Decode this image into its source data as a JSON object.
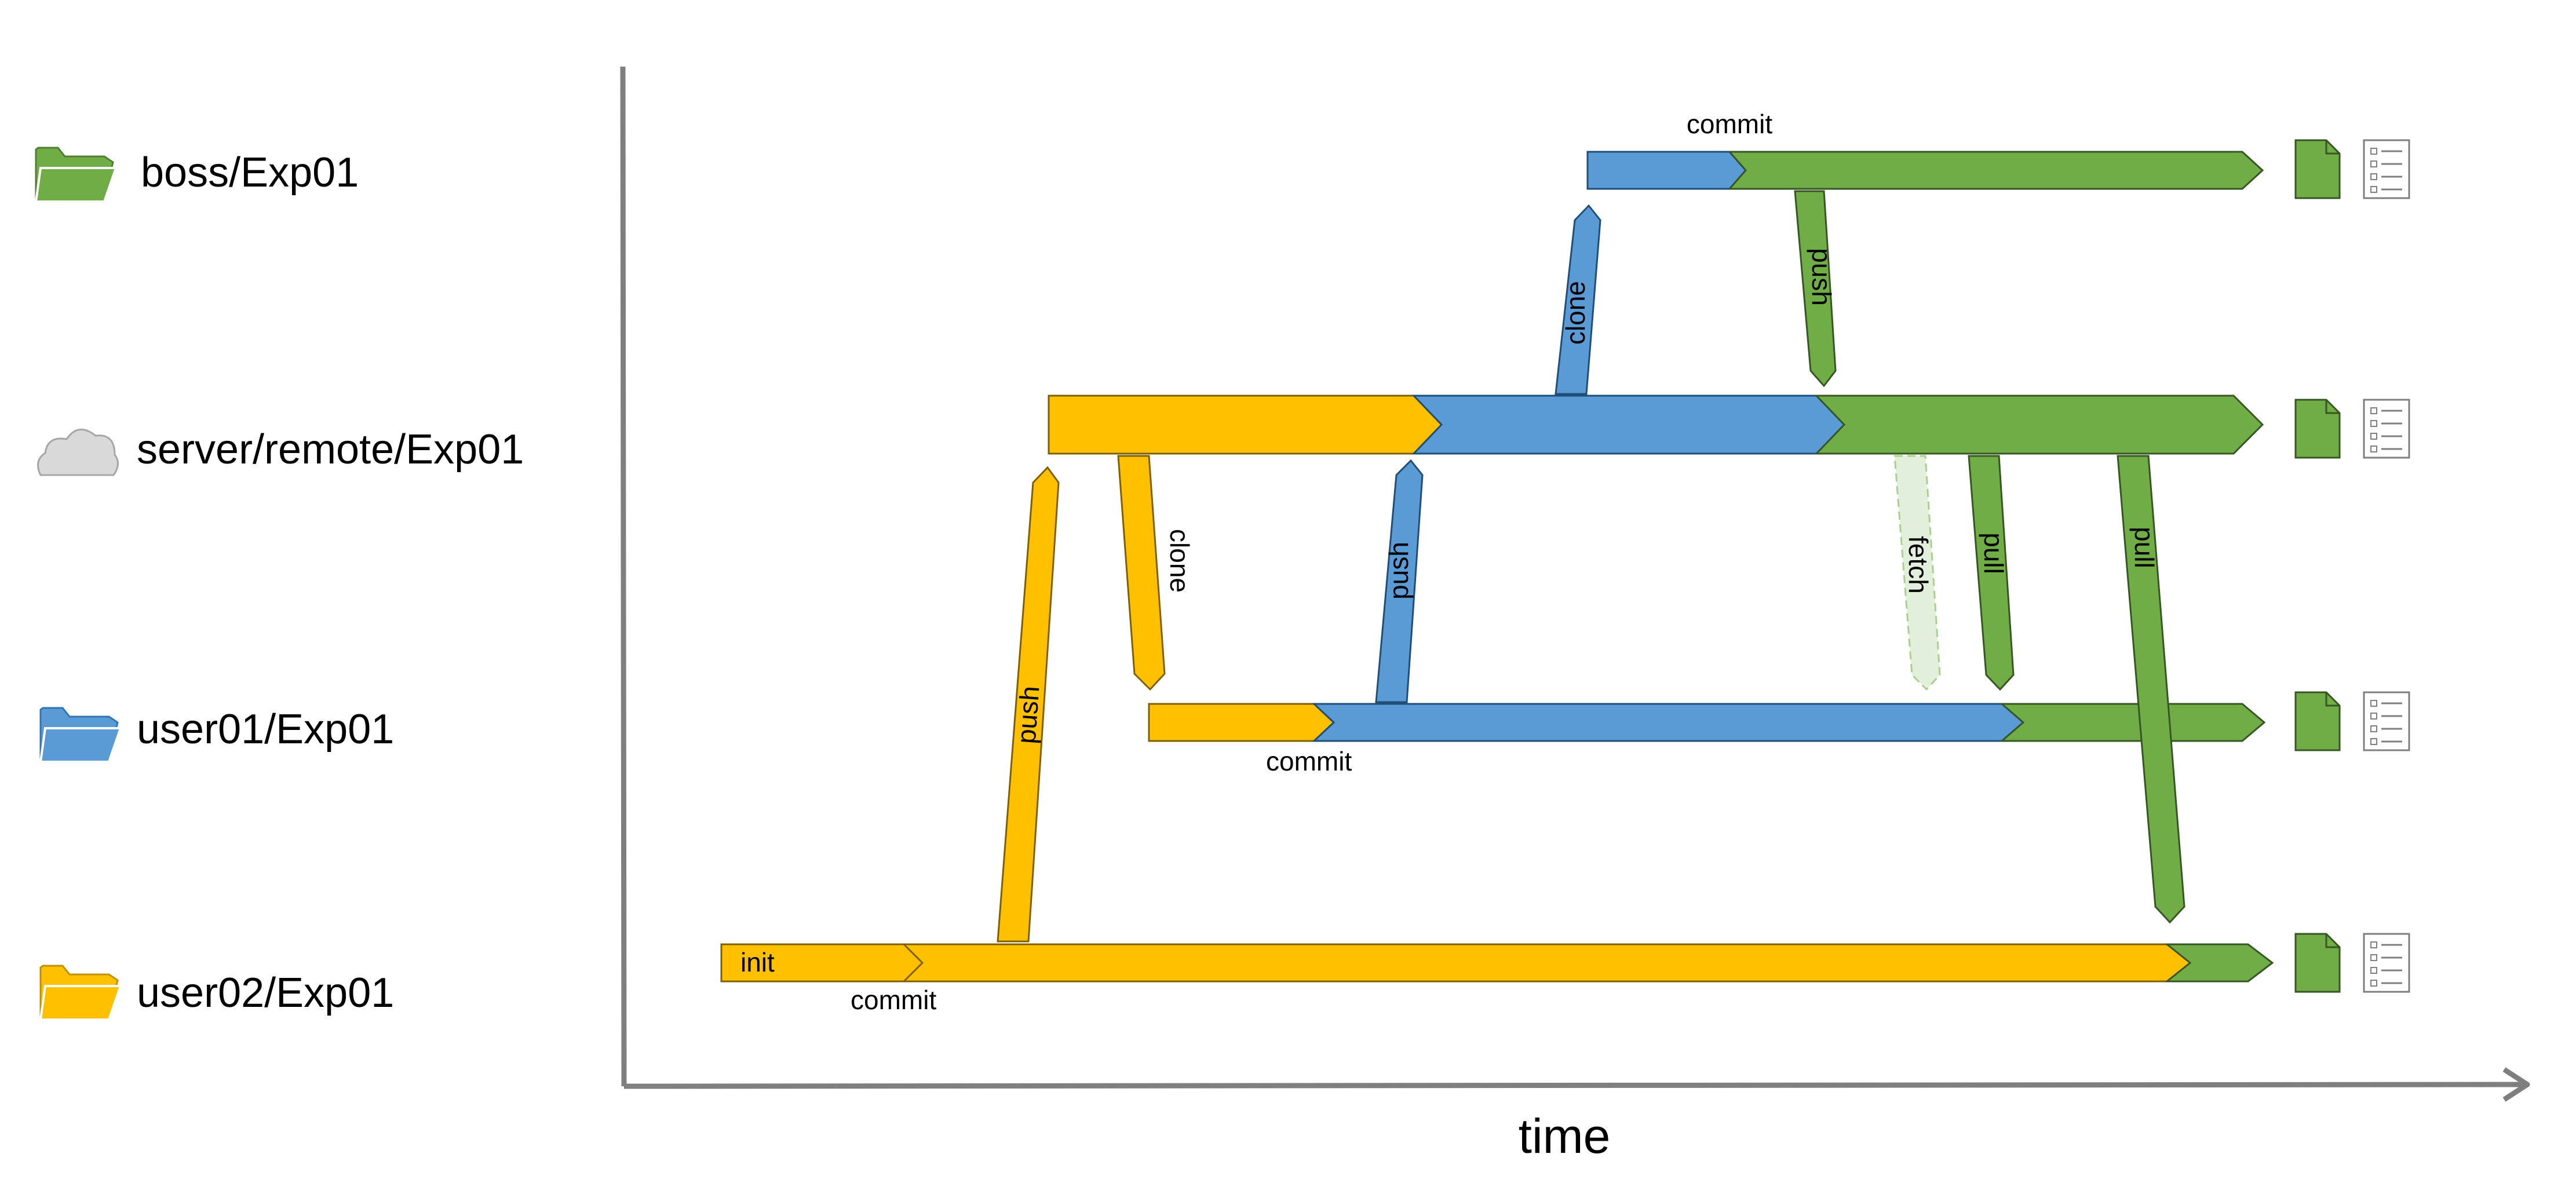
{
  "colors": {
    "user02": "#FFC000",
    "user01": "#5B9BD5",
    "boss": "#70AD47",
    "server": "#D9D9D9",
    "fetch": "#E2EFDA",
    "axis": "#7F7F7F"
  },
  "repos": [
    {
      "id": "boss",
      "label": "boss/Exp01",
      "icon": "folder-icon"
    },
    {
      "id": "server",
      "label": "server/remote/Exp01",
      "icon": "cloud-icon"
    },
    {
      "id": "user01",
      "label": "user01/Exp01",
      "icon": "folder-icon"
    },
    {
      "id": "user02",
      "label": "user02/Exp01",
      "icon": "folder-icon"
    }
  ],
  "operations": {
    "init": "init",
    "commit_user02": "commit",
    "push_user02": "push",
    "clone_user01": "clone",
    "commit_user01": "commit",
    "push_user01": "push",
    "clone_boss": "clone",
    "commit_boss": "commit",
    "push_boss": "push",
    "fetch_user01": "fetch",
    "pull_user01": "pull",
    "pull_user02": "pull"
  },
  "axis": {
    "label": "time"
  },
  "end_icons": [
    "file-icon",
    "list-icon"
  ]
}
